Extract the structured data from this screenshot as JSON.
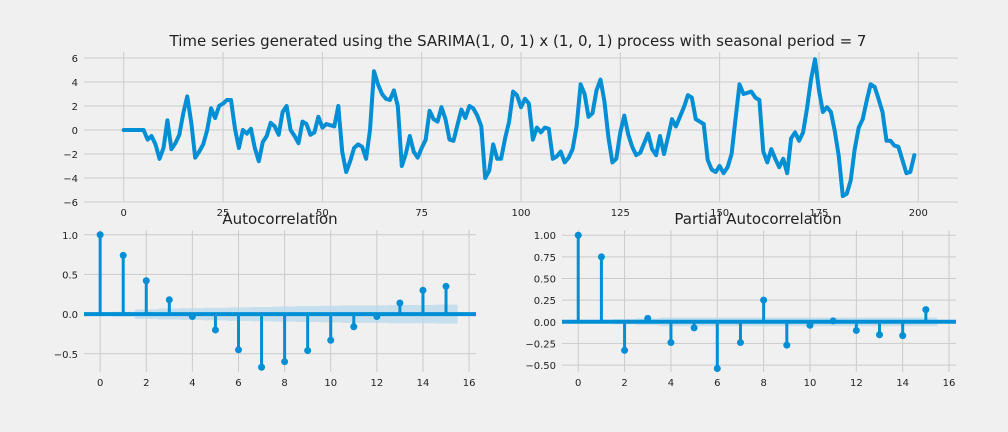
{
  "colors": {
    "line": "#008fd5",
    "grid": "#cbcbcb",
    "background": "#f0f0f0",
    "band": "#b9d9ec",
    "text": "#222222"
  },
  "chart_data": [
    {
      "type": "line",
      "title": "Time series generated using the SARIMA(1, 0, 1) x (1, 0, 1) process with seasonal period = 7",
      "xlim": [
        -10,
        210
      ],
      "ylim": [
        -6,
        6.5
      ],
      "xticks": [
        0,
        25,
        50,
        75,
        100,
        125,
        150,
        175,
        200
      ],
      "yticks": [
        -6,
        -4,
        -2,
        0,
        2,
        4,
        6
      ],
      "grid": true,
      "series": [
        {
          "x": [
            0,
            1,
            2,
            3,
            4,
            5,
            6,
            7,
            8,
            9,
            10,
            11,
            12,
            13,
            14,
            15,
            16,
            17,
            18,
            19,
            20,
            21,
            22,
            23,
            24,
            25,
            26,
            27,
            28,
            29,
            30,
            31,
            32,
            33,
            34,
            35,
            36,
            37,
            38,
            39,
            40,
            41,
            42,
            43,
            44,
            45,
            46,
            47,
            48,
            49,
            50,
            51,
            52,
            53,
            54,
            55,
            56,
            57,
            58,
            59,
            60,
            61,
            62,
            63,
            64,
            65,
            66,
            67,
            68,
            69,
            70,
            71,
            72,
            73,
            74,
            75,
            76,
            77,
            78,
            79,
            80,
            81,
            82,
            83,
            84,
            85,
            86,
            87,
            88,
            89,
            90,
            91,
            92,
            93,
            94,
            95,
            96,
            97,
            98,
            99,
            100,
            101,
            102,
            103,
            104,
            105,
            106,
            107,
            108,
            109,
            110,
            111,
            112,
            113,
            114,
            115,
            116,
            117,
            118,
            119,
            120,
            121,
            122,
            123,
            124,
            125,
            126,
            127,
            128,
            129,
            130,
            131,
            132,
            133,
            134,
            135,
            136,
            137,
            138,
            139,
            140,
            141,
            142,
            143,
            144,
            145,
            146,
            147,
            148,
            149,
            150,
            151,
            152,
            153,
            154,
            155,
            156,
            157,
            158,
            159,
            160,
            161,
            162,
            163,
            164,
            165,
            166,
            167,
            168,
            169,
            170,
            171,
            172,
            173,
            174,
            175,
            176,
            177,
            178,
            179,
            180,
            181,
            182,
            183,
            184,
            185,
            186,
            187,
            188,
            189,
            190,
            191,
            192,
            193,
            194,
            195,
            196,
            197,
            198,
            199
          ],
          "y": [
            0,
            0,
            0,
            0,
            0,
            0,
            -0.8,
            -0.5,
            -1.2,
            -2.4,
            -1.5,
            0.8,
            -1.6,
            -1.1,
            -0.4,
            1.4,
            2.8,
            0.6,
            -2.3,
            -1.8,
            -1.2,
            0,
            1.8,
            1.0,
            2.0,
            2.2,
            2.5,
            2.5,
            0.1,
            -1.5,
            0,
            -0.3,
            0.1,
            -1.5,
            -2.6,
            -1,
            -0.5,
            0.6,
            0.3,
            -0.4,
            1.5,
            2.0,
            0,
            -0.5,
            -1.1,
            0.7,
            0.5,
            -0.4,
            -0.2,
            1.1,
            0.2,
            0.5,
            0.4,
            0.3,
            2.0,
            -1.8,
            -3.5,
            -2.6,
            -1.5,
            -1.2,
            -1.4,
            -2.4,
            0,
            4.9,
            3.8,
            3.0,
            2.6,
            2.5,
            3.3,
            2.0,
            -3.0,
            -2.0,
            -0.5,
            -1.8,
            -2.3,
            -1.5,
            -0.8,
            1.6,
            0.9,
            0.7,
            1.9,
            0.9,
            -0.8,
            -0.9,
            0.4,
            1.7,
            1.0,
            2.0,
            1.8,
            1.2,
            0.3,
            -4.0,
            -3.4,
            -1.2,
            -2.4,
            -2.4,
            -0.7,
            0.7,
            3.2,
            2.9,
            1.9,
            2.6,
            2.2,
            -0.8,
            0.2,
            -0.2,
            0.2,
            0.1,
            -2.4,
            -2.2,
            -1.8,
            -2.7,
            -2.3,
            -1.6,
            0.3,
            3.8,
            3.0,
            1.1,
            1.4,
            3.3,
            4.2,
            2.4,
            -0.6,
            -2.7,
            -2.4,
            -0.2,
            1.2,
            -0.4,
            -1.4,
            -2.1,
            -1.9,
            -1.1,
            -0.3,
            -1.6,
            -2.1,
            -0.5,
            -2.0,
            -0.6,
            0.9,
            0.3,
            1.1,
            1.9,
            2.9,
            2.7,
            0.9,
            0.7,
            0.5,
            -2.5,
            -3.3,
            -3.5,
            -3.0,
            -3.6,
            -3.1,
            -2.0,
            0.9,
            3.8,
            3.0,
            3.1,
            3.2,
            2.7,
            2.5,
            -1.8,
            -2.7,
            -1.6,
            -2.4,
            -3.1,
            -2.4,
            -3.6,
            -0.7,
            -0.2,
            -0.9,
            -0.2,
            1.8,
            4.2,
            5.9,
            3.3,
            1.5,
            1.9,
            1.5,
            -0.1,
            -2.2,
            -5.5,
            -5.3,
            -4.2,
            -1.6,
            0.2,
            0.9,
            2.4,
            3.8,
            3.6,
            2.6,
            1.5,
            -0.9,
            -0.9,
            -1.3,
            -1.4,
            -2.5,
            -3.6,
            -3.5,
            -2.1
          ]
        }
      ]
    },
    {
      "type": "stem",
      "title": "Autocorrelation",
      "xlim": [
        -0.7,
        16.3
      ],
      "ylim": [
        -0.73,
        1.06
      ],
      "xticks": [
        0,
        2,
        4,
        6,
        8,
        10,
        12,
        14,
        16
      ],
      "yticks": [
        -0.5,
        0.0,
        0.5,
        1.0
      ],
      "ytick_labels": [
        "−0.5",
        "0.0",
        "0.5",
        "1.0"
      ],
      "grid": true,
      "lags": [
        0,
        1,
        2,
        3,
        4,
        5,
        6,
        7,
        8,
        9,
        10,
        11,
        12,
        13,
        14,
        15
      ],
      "values": [
        1.0,
        0.74,
        0.42,
        0.18,
        -0.03,
        -0.2,
        -0.45,
        -0.67,
        -0.6,
        -0.46,
        -0.33,
        -0.16,
        -0.03,
        0.14,
        0.3,
        0.35
      ],
      "confidence": [
        0.0,
        0.03,
        0.06,
        0.07,
        0.075,
        0.08,
        0.085,
        0.09,
        0.095,
        0.1,
        0.105,
        0.11,
        0.11,
        0.115,
        0.115,
        0.12
      ]
    },
    {
      "type": "stem",
      "title": "Partial Autocorrelation",
      "xlim": [
        -0.7,
        16.3
      ],
      "ylim": [
        -0.58,
        1.06
      ],
      "xticks": [
        0,
        2,
        4,
        6,
        8,
        10,
        12,
        14,
        16
      ],
      "yticks": [
        -0.5,
        -0.25,
        0.0,
        0.25,
        0.5,
        0.75,
        1.0
      ],
      "ytick_labels": [
        "−0.50",
        "−0.25",
        "0.00",
        "0.25",
        "0.50",
        "0.75",
        "1.00"
      ],
      "grid": true,
      "lags": [
        0,
        1,
        2,
        3,
        4,
        5,
        6,
        7,
        8,
        9,
        10,
        11,
        12,
        13,
        14,
        15
      ],
      "values": [
        1.0,
        0.75,
        -0.33,
        0.04,
        -0.24,
        -0.07,
        -0.54,
        -0.24,
        0.25,
        -0.27,
        -0.04,
        0.01,
        -0.1,
        -0.15,
        -0.16,
        0.14
      ],
      "confidence": [
        0.0,
        0.0,
        0.03,
        0.04,
        0.05,
        0.05,
        0.05,
        0.05,
        0.05,
        0.05,
        0.05,
        0.05,
        0.05,
        0.05,
        0.05,
        0.05
      ]
    }
  ]
}
